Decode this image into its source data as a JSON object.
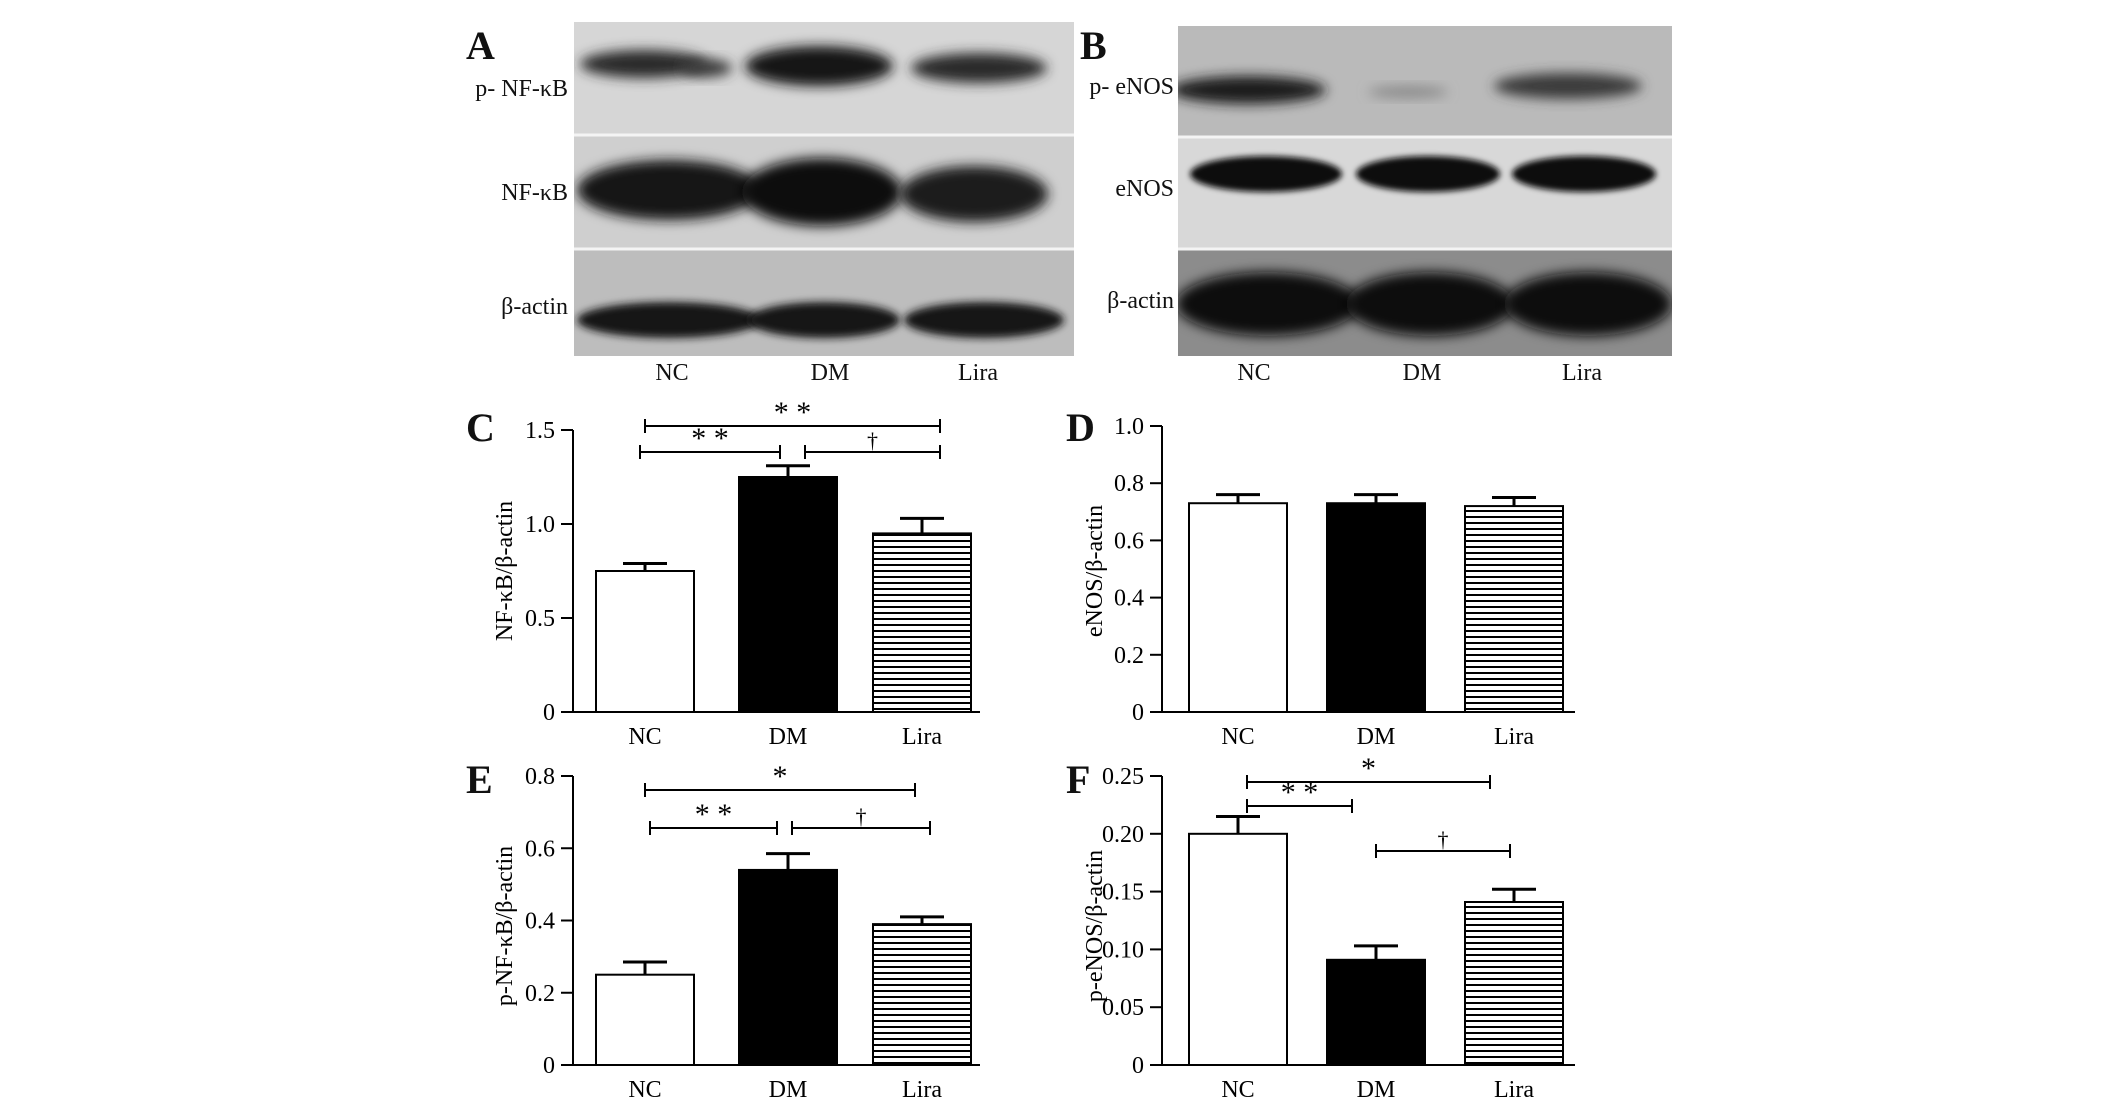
{
  "panels": {
    "A": "A",
    "B": "B",
    "C": "C",
    "D": "D",
    "E": "E",
    "F": "F"
  },
  "blots": {
    "A": {
      "rows": [
        "p- NF-κB",
        "NF-κB",
        "β-actin"
      ],
      "lanes": [
        "NC",
        "DM",
        "Lira"
      ]
    },
    "B": {
      "rows": [
        "p- eNOS",
        "eNOS",
        "β-actin"
      ],
      "lanes": [
        "NC",
        "DM",
        "Lira"
      ]
    }
  },
  "chart_data": [
    {
      "id": "C",
      "type": "bar",
      "categories": [
        "NC",
        "DM",
        "Lira"
      ],
      "values": [
        0.75,
        1.25,
        0.95
      ],
      "errors": [
        0.04,
        0.06,
        0.08
      ],
      "ylabel": "NF-κB/β-actin",
      "ylim": [
        0,
        1.5
      ],
      "yticks": [
        "0",
        "0.5",
        "1.0",
        "1.5"
      ],
      "ytick_values": [
        0,
        0.5,
        1.0,
        1.5
      ],
      "fills": [
        "white",
        "black",
        "hatch"
      ],
      "significance": [
        {
          "from": 0,
          "to": 2,
          "label": "* *"
        },
        {
          "from": 0,
          "to": 1,
          "label": "* *"
        },
        {
          "from": 1,
          "to": 2,
          "label": "†"
        }
      ]
    },
    {
      "id": "D",
      "type": "bar",
      "categories": [
        "NC",
        "DM",
        "Lira"
      ],
      "values": [
        0.73,
        0.73,
        0.72
      ],
      "errors": [
        0.03,
        0.03,
        0.03
      ],
      "ylabel": "eNOS/β-actin",
      "ylim": [
        0,
        1.0
      ],
      "yticks": [
        "0",
        "0.2",
        "0.4",
        "0.6",
        "0.8",
        "1.0"
      ],
      "ytick_values": [
        0,
        0.2,
        0.4,
        0.6,
        0.8,
        1.0
      ],
      "fills": [
        "white",
        "black",
        "hatch"
      ],
      "significance": []
    },
    {
      "id": "E",
      "type": "bar",
      "categories": [
        "NC",
        "DM",
        "Lira"
      ],
      "values": [
        0.25,
        0.54,
        0.39
      ],
      "errors": [
        0.035,
        0.045,
        0.02
      ],
      "ylabel": "p-NF-κB/β-actin",
      "ylim": [
        0,
        0.8
      ],
      "yticks": [
        "0",
        "0.2",
        "0.4",
        "0.6",
        "0.8"
      ],
      "ytick_values": [
        0,
        0.2,
        0.4,
        0.6,
        0.8
      ],
      "fills": [
        "white",
        "black",
        "hatch"
      ],
      "significance": [
        {
          "from": 0,
          "to": 2,
          "label": "*"
        },
        {
          "from": 0,
          "to": 1,
          "label": "* *"
        },
        {
          "from": 1,
          "to": 2,
          "label": "†"
        }
      ]
    },
    {
      "id": "F",
      "type": "bar",
      "categories": [
        "NC",
        "DM",
        "Lira"
      ],
      "values": [
        0.2,
        0.091,
        0.141
      ],
      "errors": [
        0.015,
        0.012,
        0.011
      ],
      "ylabel": "p-eNOS/β-actin",
      "ylim": [
        0,
        0.25
      ],
      "yticks": [
        "0",
        "0.05",
        "0.10",
        "0.15",
        "0.20",
        "0.25"
      ],
      "ytick_values": [
        0,
        0.05,
        0.1,
        0.15,
        0.2,
        0.25
      ],
      "fills": [
        "white",
        "black",
        "hatch"
      ],
      "significance": [
        {
          "from": 0,
          "to": 2,
          "label": "*"
        },
        {
          "from": 0,
          "to": 1,
          "label": "* *"
        },
        {
          "from": 1,
          "to": 2,
          "label": "†"
        }
      ]
    }
  ]
}
